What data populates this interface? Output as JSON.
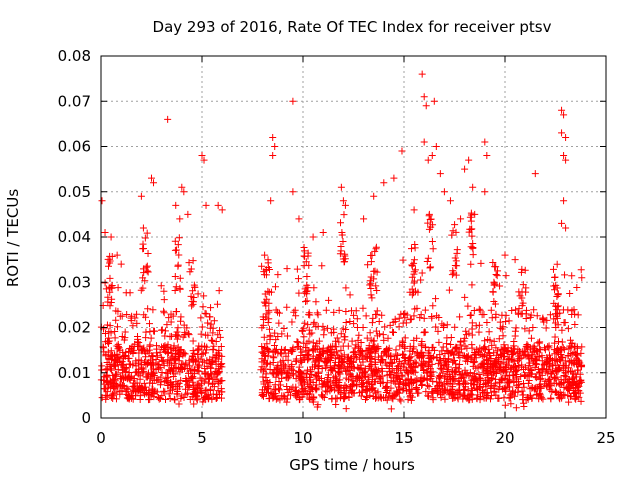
{
  "chart_data": {
    "type": "scatter",
    "title": "Day 293 of 2016, Rate Of TEC Index for receiver ptsv",
    "xlabel": "GPS time / hours",
    "ylabel": "ROTI / TECUs",
    "xlim": [
      0,
      25
    ],
    "ylim": [
      0,
      0.08
    ],
    "xticks": [
      0,
      5,
      10,
      15,
      20,
      25
    ],
    "xtick_labels": [
      "0",
      "5",
      "10",
      "15",
      "20",
      "25"
    ],
    "yticks": [
      0,
      0.01,
      0.02,
      0.03,
      0.04,
      0.05,
      0.06,
      0.07,
      0.08
    ],
    "ytick_labels": [
      "0",
      "0.01",
      "0.02",
      "0.03",
      "0.04",
      "0.05",
      "0.06",
      "0.07",
      "0.08"
    ],
    "grid": true,
    "marker": "+",
    "color": "#ff0000",
    "series": [
      {
        "name": "ROTI",
        "points": [
          [
            0.05,
            0.048
          ],
          [
            0.2,
            0.041
          ],
          [
            0.5,
            0.04
          ],
          [
            0.8,
            0.036
          ],
          [
            1.0,
            0.034
          ],
          [
            2.0,
            0.049
          ],
          [
            2.1,
            0.042
          ],
          [
            2.5,
            0.053
          ],
          [
            2.6,
            0.052
          ],
          [
            3.3,
            0.066
          ],
          [
            3.7,
            0.047
          ],
          [
            3.9,
            0.044
          ],
          [
            4.0,
            0.051
          ],
          [
            4.1,
            0.05
          ],
          [
            4.3,
            0.045
          ],
          [
            5.0,
            0.058
          ],
          [
            5.1,
            0.057
          ],
          [
            5.2,
            0.047
          ],
          [
            5.8,
            0.047
          ],
          [
            6.0,
            0.046
          ],
          [
            8.1,
            0.036
          ],
          [
            8.5,
            0.062
          ],
          [
            8.6,
            0.06
          ],
          [
            8.5,
            0.058
          ],
          [
            8.4,
            0.048
          ],
          [
            9.5,
            0.07
          ],
          [
            9.5,
            0.05
          ],
          [
            9.8,
            0.044
          ],
          [
            10.5,
            0.04
          ],
          [
            11.0,
            0.041
          ],
          [
            11.9,
            0.051
          ],
          [
            12.0,
            0.048
          ],
          [
            12.1,
            0.047
          ],
          [
            13.0,
            0.044
          ],
          [
            13.5,
            0.049
          ],
          [
            14.0,
            0.052
          ],
          [
            14.5,
            0.053
          ],
          [
            14.9,
            0.059
          ],
          [
            15.5,
            0.046
          ],
          [
            15.9,
            0.076
          ],
          [
            16.0,
            0.071
          ],
          [
            16.1,
            0.069
          ],
          [
            16.0,
            0.061
          ],
          [
            16.2,
            0.057
          ],
          [
            16.5,
            0.07
          ],
          [
            16.6,
            0.06
          ],
          [
            16.4,
            0.058
          ],
          [
            16.8,
            0.054
          ],
          [
            17.0,
            0.05
          ],
          [
            17.3,
            0.048
          ],
          [
            17.8,
            0.044
          ],
          [
            18.0,
            0.055
          ],
          [
            18.2,
            0.057
          ],
          [
            18.4,
            0.051
          ],
          [
            18.5,
            0.045
          ],
          [
            19.0,
            0.061
          ],
          [
            19.1,
            0.058
          ],
          [
            19.0,
            0.05
          ],
          [
            20.0,
            0.036
          ],
          [
            20.5,
            0.035
          ],
          [
            21.5,
            0.054
          ],
          [
            22.8,
            0.068
          ],
          [
            22.9,
            0.067
          ],
          [
            22.8,
            0.063
          ],
          [
            23.0,
            0.062
          ],
          [
            22.9,
            0.058
          ],
          [
            23.0,
            0.057
          ],
          [
            22.9,
            0.048
          ],
          [
            22.8,
            0.043
          ],
          [
            23.0,
            0.042
          ],
          [
            23.8,
            0.031
          ]
        ],
        "dense_bands": [
          {
            "t_start": 0.0,
            "t_end": 6.0,
            "y_min": 0.003,
            "y_max": 0.03,
            "spikes": [
              [
                0.5,
                0.036
              ],
              [
                2.2,
                0.041
              ],
              [
                3.8,
                0.04
              ],
              [
                4.5,
                0.035
              ]
            ]
          },
          {
            "t_start": 7.9,
            "t_end": 23.8,
            "y_min": 0.002,
            "y_max": 0.035,
            "spikes": [
              [
                8.2,
                0.035
              ],
              [
                10.2,
                0.038
              ],
              [
                12.0,
                0.045
              ],
              [
                13.5,
                0.038
              ],
              [
                15.5,
                0.039
              ],
              [
                16.3,
                0.045
              ],
              [
                17.5,
                0.043
              ],
              [
                18.3,
                0.047
              ],
              [
                19.5,
                0.034
              ],
              [
                20.8,
                0.034
              ],
              [
                22.5,
                0.032
              ]
            ]
          }
        ]
      }
    ]
  }
}
